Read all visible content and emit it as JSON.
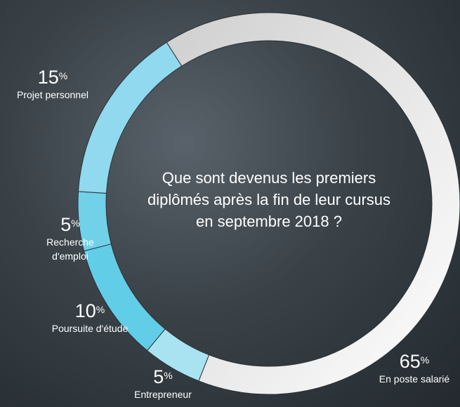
{
  "chart_data": {
    "type": "pie",
    "title": "Que sont devenus les premiers diplômés après la fin de leur cursus en septembre 2018 ?",
    "categories": [
      "En poste salarié",
      "Entrepreneur",
      "Poursuite d'étude",
      "Recherche d'emploi",
      "Projet personnel"
    ],
    "values": [
      65,
      5,
      10,
      5,
      15
    ],
    "value_labels": [
      "65%",
      "5%",
      "10%",
      "5%",
      "15%"
    ],
    "colors": [
      "#e4e4e4",
      "#a9e3f1",
      "#62cde6",
      "#70d1e9",
      "#90d9ee"
    ]
  }
}
